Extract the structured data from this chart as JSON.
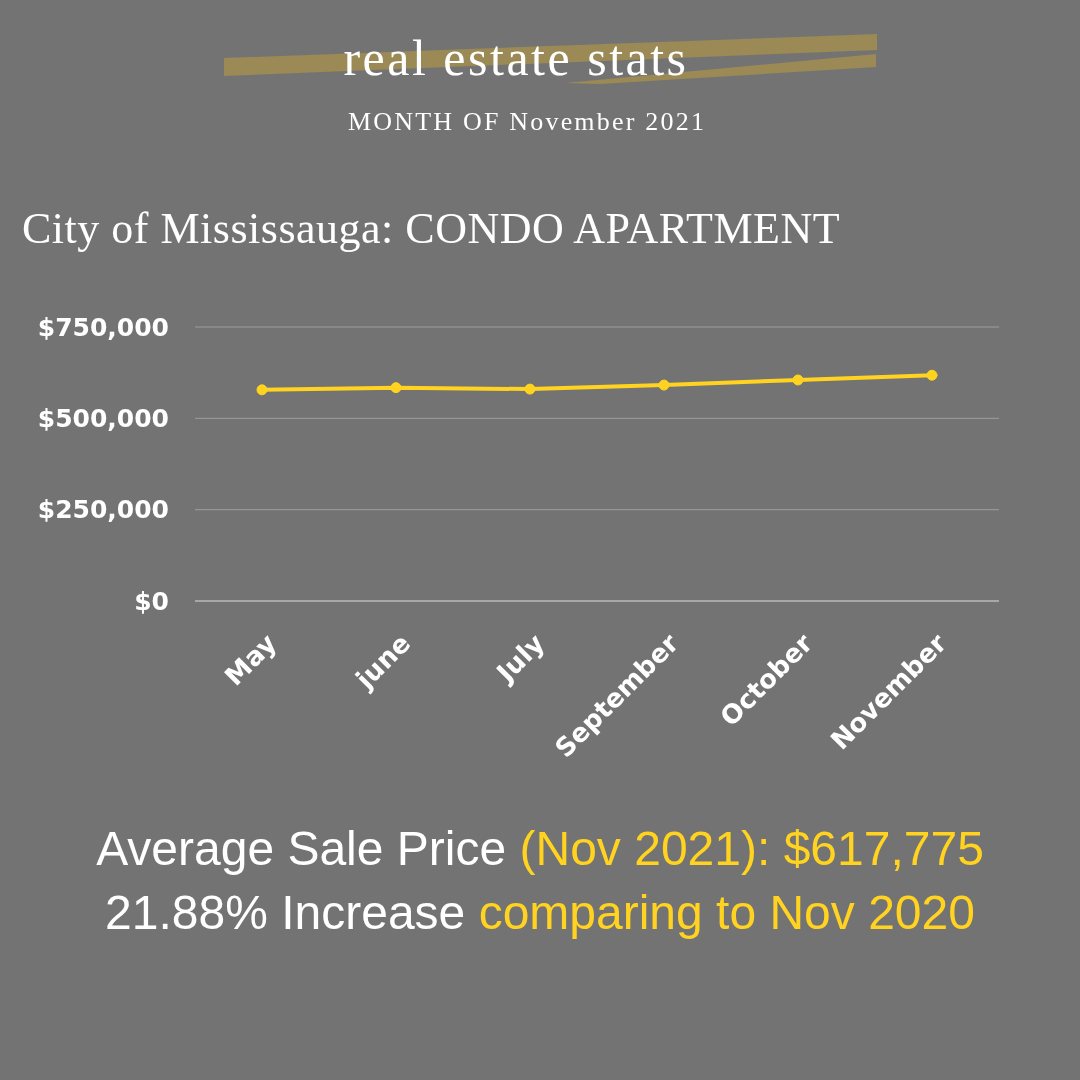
{
  "chart_data": {
    "type": "line",
    "title": "real estate stats",
    "subtitle": "MONTH OF November 2021",
    "annotations": [
      "City of Mississauga: CONDO APARTMENT",
      "Average Sale Price",
      "(Nov 2021): $617,775",
      "21.88% Increase",
      "comparing to Nov 2020"
    ],
    "categories": [
      "May",
      "june",
      "July",
      "September",
      "October",
      "November"
    ],
    "values": [
      578000,
      584000,
      580000,
      591000,
      605000,
      618000
    ],
    "color": "#ffd320",
    "ylim": [
      0,
      750000
    ],
    "yticks": [
      {
        "value": 0,
        "label": "$0"
      },
      {
        "value": 250000,
        "label": "$250,000"
      },
      {
        "value": 500000,
        "label": "$500,000"
      },
      {
        "value": 750000,
        "label": "$750,000"
      }
    ],
    "grid": "y",
    "marker": "circle"
  }
}
